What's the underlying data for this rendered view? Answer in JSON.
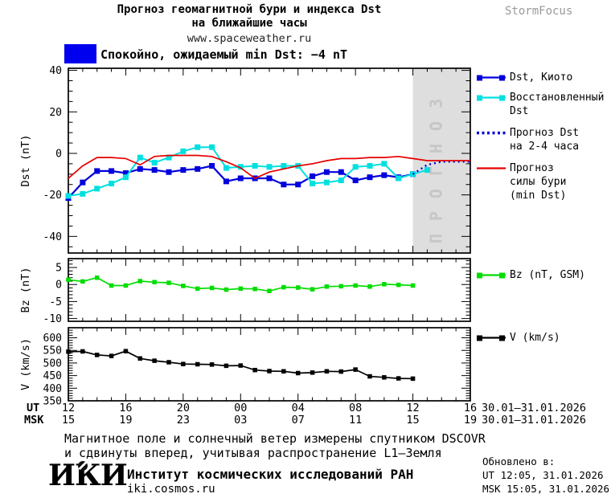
{
  "header": {
    "title_line1": "Прогноз геомагнитной бури и индекса Dst",
    "title_line2": "на ближайшие часы",
    "website": "www.spaceweather.ru",
    "brand": "StormFocus"
  },
  "status": {
    "label": "Спокойно, ожидаемый min Dst: −4 nT",
    "swatch_color": "#0000ee"
  },
  "chart_data": [
    {
      "type": "line",
      "ylabel": "Dst (nT)",
      "ylim": [
        -48,
        41
      ],
      "yticks": [
        -40,
        -20,
        0,
        20,
        40
      ],
      "yminor": 5,
      "xlim": [
        0,
        28
      ],
      "grid": false,
      "forecast_region": {
        "x_start": 24,
        "x_end": 28,
        "fill": "#dedede",
        "label": "ПРОГНОЗ",
        "label_color": "#c6c6c6"
      },
      "series": [
        {
          "id": "dst-kyoto",
          "name": "Dst, Киото",
          "color": "#0000dd",
          "width": 2.2,
          "marker": 7,
          "dash": null,
          "x": [
            0,
            1,
            2,
            3,
            4,
            5,
            6,
            7,
            8,
            9,
            10,
            11,
            12,
            13,
            14,
            15,
            16,
            17,
            18,
            19,
            20,
            21,
            22,
            23,
            24
          ],
          "values": [
            -21.5,
            -14,
            -8.5,
            -8.5,
            -9.5,
            -7.5,
            -8,
            -9,
            -8,
            -7.5,
            -6,
            -13.5,
            -12,
            -12,
            -12,
            -15,
            -15,
            -11,
            -9,
            -9,
            -13,
            -11.5,
            -10.5,
            -11.5,
            -10
          ]
        },
        {
          "id": "dst-reconstructed",
          "name": "Восстановленный Dst",
          "color": "#00e0e0",
          "width": 2,
          "marker": 7,
          "dash": null,
          "x": [
            0,
            1,
            2,
            3,
            4,
            5,
            6,
            7,
            8,
            9,
            10,
            11,
            12,
            13,
            14,
            15,
            16,
            17,
            18,
            19,
            20,
            21,
            22,
            23,
            24,
            25
          ],
          "values": [
            -20.5,
            -19.5,
            -17,
            -14.5,
            -11.5,
            -2,
            -4.5,
            -2,
            1,
            3,
            3,
            -7,
            -6.5,
            -6,
            -6.5,
            -6,
            -6,
            -14.5,
            -14,
            -13,
            -6.5,
            -6,
            -5,
            -12,
            -10,
            -8
          ]
        },
        {
          "id": "dst-forecast",
          "name": "Прогноз Dst на 2-4 часа",
          "color": "#0000dd",
          "width": 2.4,
          "marker": 0,
          "dash": "2 4",
          "x": [
            24,
            25,
            26,
            27,
            28
          ],
          "values": [
            -10,
            -5.5,
            -4,
            -4,
            -4
          ]
        },
        {
          "id": "storm-forecast",
          "name": "Прогноз силы бури (min Dst)",
          "color": "#e60000",
          "width": 1.7,
          "marker": 0,
          "dash": null,
          "x": [
            0,
            1,
            2,
            3,
            4,
            5,
            6,
            7,
            8,
            9,
            10,
            11,
            12,
            13,
            14,
            15,
            16,
            17,
            18,
            19,
            20,
            21,
            22,
            23,
            24,
            25,
            26,
            27,
            28
          ],
          "values": [
            -12,
            -6,
            -2,
            -2,
            -2.5,
            -5.5,
            -1.5,
            -1,
            -1,
            -1,
            -1.5,
            -4,
            -7,
            -12,
            -9,
            -7.5,
            -6,
            -5,
            -3.5,
            -2.5,
            -2.5,
            -2,
            -2,
            -1.5,
            -2.5,
            -3.5,
            -3.5,
            -3.5,
            -3.5
          ]
        }
      ]
    },
    {
      "type": "line",
      "ylabel": "Bz (nT)",
      "ylim": [
        -10.8,
        7.6
      ],
      "yticks": [
        5,
        0,
        -5,
        -10
      ],
      "yminor": 1,
      "xlim": [
        0,
        28
      ],
      "grid": false,
      "series": [
        {
          "id": "bz",
          "name": "Bz (nT, GSM)",
          "color": "#00dd00",
          "width": 1.7,
          "marker": 5.5,
          "dash": null,
          "x": [
            0,
            1,
            2,
            3,
            4,
            5,
            6,
            7,
            8,
            9,
            10,
            11,
            12,
            13,
            14,
            15,
            16,
            17,
            18,
            19,
            20,
            21,
            22,
            23,
            24
          ],
          "values": [
            1.4,
            0.9,
            2.0,
            -0.3,
            -0.3,
            1.0,
            0.7,
            0.5,
            -0.4,
            -1.2,
            -1.0,
            -1.5,
            -1.2,
            -1.3,
            -1.9,
            -0.8,
            -0.9,
            -1.4,
            -0.6,
            -0.5,
            -0.3,
            -0.6,
            0.1,
            -0.1,
            -0.3
          ]
        }
      ]
    },
    {
      "type": "line",
      "ylabel": "V (km/s)",
      "ylim": [
        350,
        640
      ],
      "yticks": [
        600,
        550,
        500,
        450,
        400,
        350
      ],
      "yminor": 10,
      "xlim": [
        0,
        28
      ],
      "grid": false,
      "series": [
        {
          "id": "v",
          "name": "V (km/s)",
          "color": "#000000",
          "width": 1.7,
          "marker": 5.5,
          "dash": null,
          "x": [
            0,
            1,
            2,
            3,
            4,
            5,
            6,
            7,
            8,
            9,
            10,
            11,
            12,
            13,
            14,
            15,
            16,
            17,
            18,
            19,
            20,
            21,
            22,
            23,
            24
          ],
          "values": [
            545,
            546,
            532,
            528,
            547,
            518,
            509,
            503,
            496,
            495,
            494,
            489,
            490,
            472,
            468,
            467,
            460,
            462,
            467,
            466,
            474,
            447,
            443,
            439,
            438
          ]
        }
      ]
    }
  ],
  "legend_main": [
    {
      "lines": [
        "Dst, Киото"
      ],
      "color": "#0000dd",
      "style": "squares"
    },
    {
      "lines": [
        "Восстановленный",
        "Dst"
      ],
      "color": "#00e0e0",
      "style": "squares"
    },
    {
      "lines": [
        "Прогноз Dst",
        "на 2-4 часа"
      ],
      "color": "#0000dd",
      "style": "dotted"
    },
    {
      "lines": [
        "Прогноз",
        "силы бури",
        "(min Dst)"
      ],
      "color": "#e60000",
      "style": "solid"
    }
  ],
  "legend_bz": {
    "lines": [
      "Bz (nT, GSM)"
    ],
    "color": "#00dd00",
    "style": "squares"
  },
  "legend_v": {
    "lines": [
      "V (km/s)"
    ],
    "color": "#000000",
    "style": "squares"
  },
  "xaxis": {
    "ut_label": "UT",
    "msk_label": "MSK",
    "ut_ticks": [
      "12",
      "16",
      "20",
      "00",
      "04",
      "08",
      "12",
      "16"
    ],
    "msk_ticks": [
      "15",
      "19",
      "23",
      "03",
      "07",
      "11",
      "15",
      "19"
    ],
    "ut_date": "30.01–31.01.2026",
    "msk_date": "30.01–31.01.2026"
  },
  "footer": {
    "note_line1": "Магнитное поле и солнечный ветер измерены спутником DSCOVR",
    "note_line2": "и сдвинуты вперед, учитывая распространение L1–Земля",
    "logo_text": "ИКИ",
    "institute": "Институт космических исследований РАН",
    "institute_site": "iki.cosmos.ru",
    "updated_label": "Обновлено в:",
    "updated_ut": "UT  12:05, 31.01.2026",
    "updated_msk": "MSK 15:05, 31.01.2026"
  }
}
